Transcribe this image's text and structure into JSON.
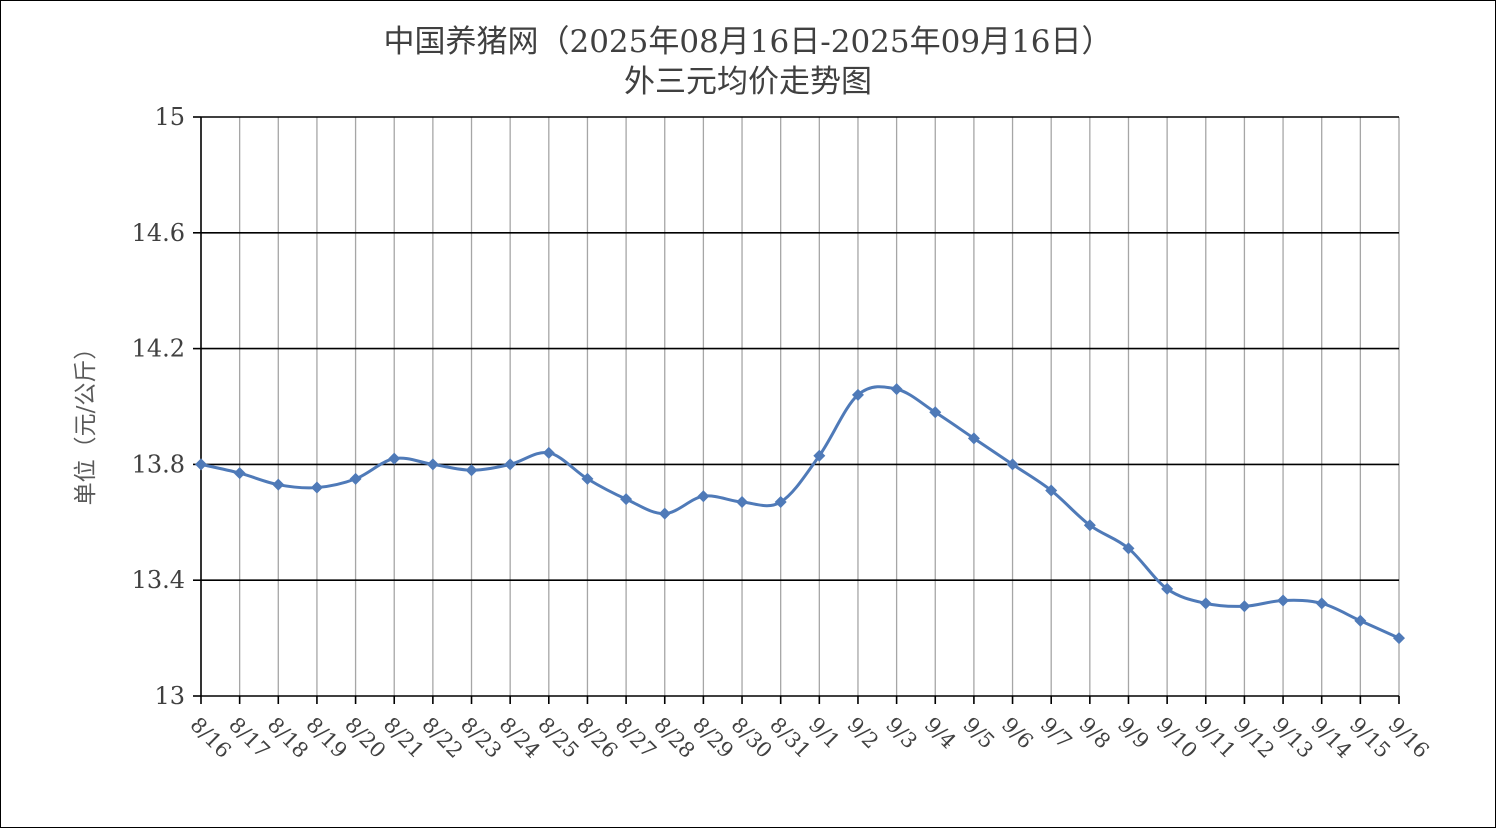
{
  "chart_data": {
    "type": "line",
    "title": "中国养猪网（2025年08月16日-2025年09月16日）",
    "subtitle": "外三元均价走势图",
    "xlabel": "",
    "ylabel": "单位（元/公斤）",
    "ylim": [
      13,
      15
    ],
    "yticks": [
      "13",
      "13.4",
      "13.8",
      "14.2",
      "14.6",
      "15"
    ],
    "ytick_values": [
      13,
      13.4,
      13.8,
      14.2,
      14.6,
      15
    ],
    "grid": true,
    "legend": "none",
    "line_color": "#4f7ab8",
    "categories": [
      "8/16",
      "8/17",
      "8/18",
      "8/19",
      "8/20",
      "8/21",
      "8/22",
      "8/23",
      "8/24",
      "8/25",
      "8/26",
      "8/27",
      "8/28",
      "8/29",
      "8/30",
      "8/31",
      "9/1",
      "9/2",
      "9/3",
      "9/4",
      "9/5",
      "9/6",
      "9/7",
      "9/8",
      "9/9",
      "9/10",
      "9/11",
      "9/12",
      "9/13",
      "9/14",
      "9/15",
      "9/16"
    ],
    "series": [
      {
        "values": [
          13.8,
          13.77,
          13.73,
          13.72,
          13.75,
          13.82,
          13.8,
          13.78,
          13.8,
          13.84,
          13.75,
          13.68,
          13.63,
          13.69,
          13.67,
          13.67,
          13.83,
          14.04,
          14.06,
          13.98,
          13.89,
          13.8,
          13.71,
          13.59,
          13.51,
          13.37,
          13.32,
          13.31,
          13.33,
          13.32,
          13.26,
          13.2
        ]
      }
    ]
  }
}
